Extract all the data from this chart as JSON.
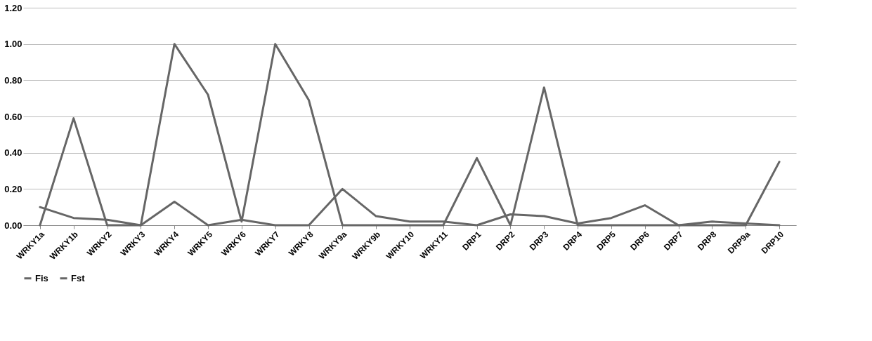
{
  "chart_data": {
    "type": "line",
    "categories": [
      "WRKY1a",
      "WRKY1b",
      "WRKY2",
      "WRKY3",
      "WRKY4",
      "WRKY5",
      "WRKY6",
      "WRKY7",
      "WRKY8",
      "WRKY9a",
      "WRKY9b",
      "WRKY10",
      "WRKY11",
      "DRP1",
      "DRP2",
      "DRP3",
      "DRP4",
      "DRP5",
      "DRP6",
      "DRP7",
      "DRP8",
      "DRP9a",
      "DRP10"
    ],
    "series": [
      {
        "name": "Fis",
        "color": "#666666",
        "values": [
          0.0,
          0.59,
          0.0,
          0.0,
          1.0,
          0.72,
          0.02,
          1.0,
          0.69,
          0.0,
          0.0,
          0.0,
          0.0,
          0.37,
          0.0,
          0.76,
          0.0,
          0.0,
          0.0,
          0.0,
          0.0,
          0.0,
          0.35
        ]
      },
      {
        "name": "Fst",
        "color": "#666666",
        "values": [
          0.1,
          0.04,
          0.03,
          0.0,
          0.13,
          0.0,
          0.03,
          0.0,
          0.0,
          0.2,
          0.05,
          0.02,
          0.02,
          0.0,
          0.06,
          0.05,
          0.01,
          0.04,
          0.11,
          0.0,
          0.02,
          0.01,
          0.0
        ]
      }
    ],
    "ylim": [
      0,
      1.2
    ],
    "yticks": [
      {
        "value": 0,
        "label": "0.00"
      },
      {
        "value": 0.2,
        "label": "0.20"
      },
      {
        "value": 0.4,
        "label": "0.40"
      },
      {
        "value": 0.6,
        "label": "0.60"
      },
      {
        "value": 0.8,
        "label": "0.80"
      },
      {
        "value": 1.0,
        "label": "1.00"
      },
      {
        "value": 1.2,
        "label": "1.20"
      }
    ],
    "grid": "y",
    "legend": "bottom",
    "marker": "none",
    "line_style": "solid"
  }
}
